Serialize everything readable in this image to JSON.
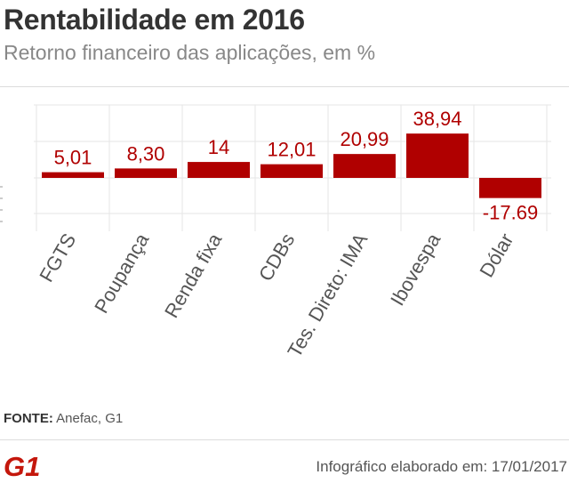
{
  "header": {
    "title": "Rentabilidade em 2016",
    "subtitle": "Retorno financeiro das aplicações, em %"
  },
  "footer": {
    "source_key": "FONTE:",
    "source_value": "Anefac, G1",
    "logo_text": "G1",
    "credit": "Infográfico elaborado em: 17/01/2017"
  },
  "colors": {
    "bar": "#b00000",
    "grid": "#e6e6e6",
    "text": "#333333",
    "subtitle": "#888888"
  },
  "chart_data": {
    "type": "bar",
    "title": "Rentabilidade em 2016",
    "subtitle": "Retorno financeiro das aplicações, em %",
    "categories": [
      "FGTS",
      "Poupança",
      "Renda fixa",
      "CDBs",
      "Tes. Direto: IMA",
      "Ibovespa",
      "Dólar"
    ],
    "values": [
      5.01,
      8.3,
      14,
      12.01,
      20.99,
      38.94,
      -17.69
    ],
    "value_labels": [
      "5,01",
      "8,30",
      "14",
      "12,01",
      "20,99",
      "38,94",
      "-17.69"
    ],
    "ylim": [
      -40,
      60
    ],
    "grid": true,
    "xlabel": "",
    "ylabel": ""
  }
}
